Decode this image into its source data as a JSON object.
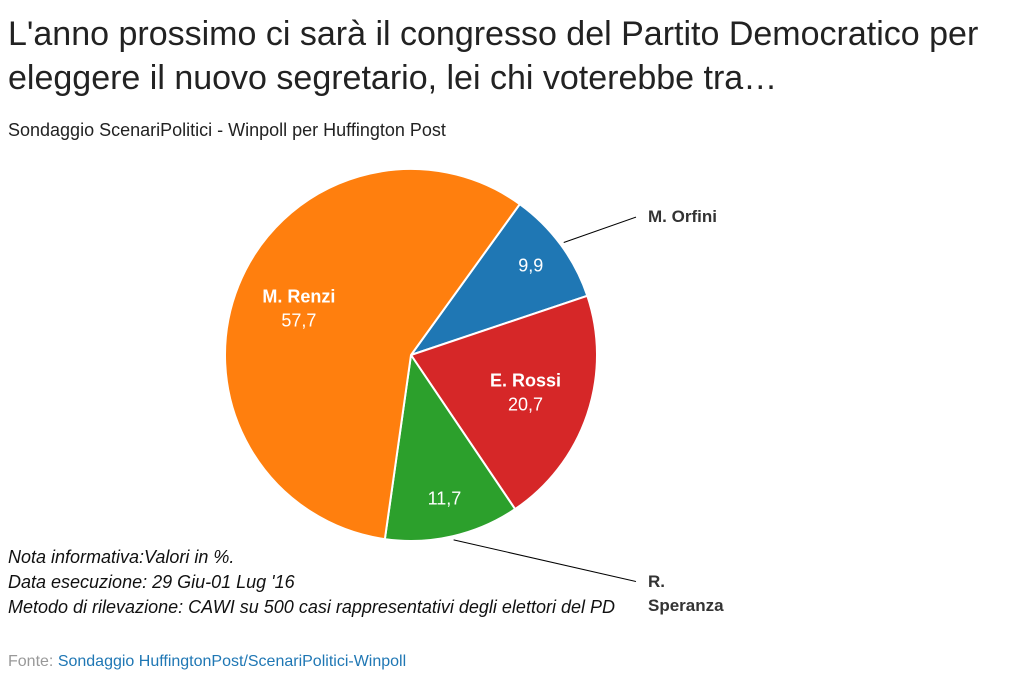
{
  "chart_data": {
    "type": "pie",
    "title": "L'anno prossimo ci sarà il congresso del Partito Democratico per eleggere il nuovo segretario, lei chi voterebbe tra…",
    "subtitle": "Sondaggio ScenariPolitici - Winpoll per Huffington Post",
    "categories": [
      "M. Orfini",
      "E. Rossi",
      "R. Speranza",
      "M. Renzi"
    ],
    "values": [
      9.9,
      20.7,
      11.7,
      57.7
    ],
    "value_labels": [
      "9,9",
      "20,7",
      "11,7",
      "57,7"
    ],
    "colors": [
      "#1f77b4",
      "#d62728",
      "#2ca02c",
      "#ff7f0e"
    ],
    "notes": [
      "Nota informativa:Valori in %.",
      "Data esecuzione: 29 Giu-01 Lug '16",
      "Metodo di rilevazione: CAWI su 500 casi rappresentativi degli elettori del PD"
    ],
    "source_label": "Fonte:",
    "source_text": "Sondaggio HuffingtonPost/ScenariPolitici-Winpoll"
  }
}
